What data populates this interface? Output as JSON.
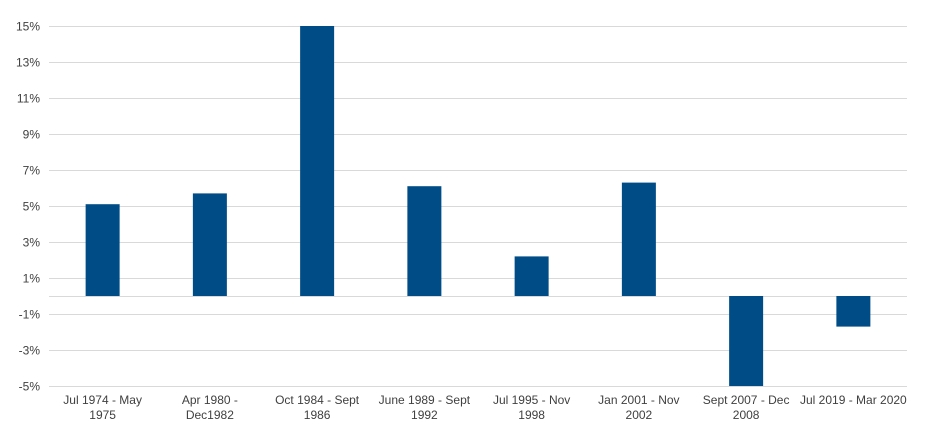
{
  "chart_data": {
    "type": "bar",
    "title": "",
    "xlabel": "",
    "ylabel": "",
    "categories": [
      [
        "Jul 1974 - May",
        "1975"
      ],
      [
        "Apr 1980 -",
        "Dec1982"
      ],
      [
        "Oct 1984 - Sept",
        "1986"
      ],
      [
        "June 1989 - Sept",
        "1992"
      ],
      [
        "Jul 1995 - Nov",
        "1998"
      ],
      [
        "Jan 2001 - Nov",
        "2002"
      ],
      [
        "Sept 2007 - Dec",
        "2008"
      ],
      [
        "Jul 2019 - Mar 2020",
        ""
      ]
    ],
    "values": [
      5.1,
      5.7,
      15.0,
      6.1,
      2.2,
      6.3,
      -5.0,
      -1.7
    ],
    "ylim": [
      -5,
      15
    ],
    "yticks": [
      -5,
      -3,
      -1,
      1,
      3,
      5,
      7,
      9,
      11,
      13,
      15
    ],
    "ytick_labels": [
      "-5%",
      "-3%",
      "-1%",
      "1%",
      "3%",
      "5%",
      "7%",
      "9%",
      "11%",
      "13%",
      "15%"
    ],
    "grid": true,
    "bar_color": "#004c87",
    "legend": "none"
  }
}
